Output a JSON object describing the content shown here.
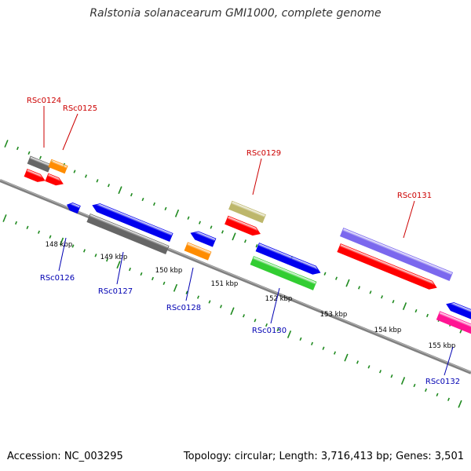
{
  "title": "Ralstonia solanacearum GMI1000, complete genome",
  "footer": {
    "accession": "Accession: NC_003295",
    "summary": "Topology: circular; Length: 3,716,413 bp; Genes: 3,501"
  },
  "colors": {
    "backbone": "#808080",
    "tick": "#1f8a1f",
    "label_forward": "#cc0000",
    "label_reverse": "#0000b3",
    "ruler_text": "#000000"
  },
  "ruler": {
    "labels": [
      "148 kbp",
      "149 kbp",
      "150 kbp",
      "151 kbp",
      "152 kbp",
      "153 kbp",
      "154 kbp",
      "155 kbp"
    ]
  },
  "genes": [
    {
      "label": "RSc0124",
      "strand": "forward"
    },
    {
      "label": "RSc0125",
      "strand": "forward"
    },
    {
      "label": "RSc0126",
      "strand": "reverse"
    },
    {
      "label": "RSc0127",
      "strand": "reverse"
    },
    {
      "label": "RSc0128",
      "strand": "reverse"
    },
    {
      "label": "RSc0129",
      "strand": "forward"
    },
    {
      "label": "RSc0130",
      "strand": "reverse"
    },
    {
      "label": "RSc0131",
      "strand": "forward"
    },
    {
      "label": "RSc0132",
      "strand": "reverse"
    }
  ]
}
